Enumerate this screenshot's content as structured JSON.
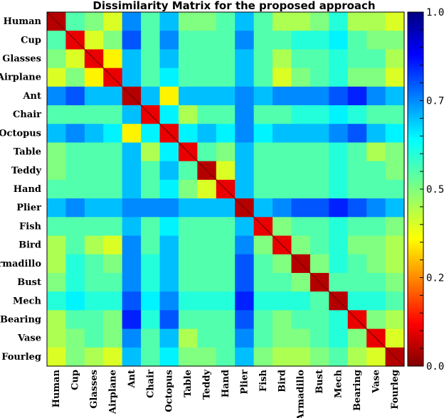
{
  "chart_data": {
    "type": "heatmap",
    "title": "Dissimilarity Matrix for the proposed approach",
    "categories": [
      "Human",
      "Cup",
      "Glasses",
      "Airplane",
      "Ant",
      "Chair",
      "Octopus",
      "Table",
      "Teddy",
      "Hand",
      "Plier",
      "Fish",
      "Bird",
      "Armadillo",
      "Bust",
      "Mech",
      "Bearing",
      "Vase",
      "Fourleg"
    ],
    "colorbar": {
      "range": [
        0,
        1
      ],
      "ticks": [
        0,
        0.25,
        0.5,
        0.75,
        1
      ],
      "tick_labels": [
        "0.0",
        "0.25",
        "0.5",
        "0.75",
        "1.0"
      ],
      "colormap": "jet-reversed"
    },
    "values": [
      [
        0.05,
        0.55,
        0.5,
        0.4,
        0.75,
        0.55,
        0.7,
        0.5,
        0.5,
        0.55,
        0.7,
        0.55,
        0.45,
        0.45,
        0.5,
        0.6,
        0.45,
        0.45,
        0.4
      ],
      [
        0.55,
        0.1,
        0.4,
        0.5,
        0.8,
        0.55,
        0.75,
        0.55,
        0.55,
        0.55,
        0.75,
        0.55,
        0.55,
        0.6,
        0.6,
        0.65,
        0.55,
        0.5,
        0.5
      ],
      [
        0.5,
        0.4,
        0.1,
        0.35,
        0.7,
        0.55,
        0.7,
        0.55,
        0.55,
        0.55,
        0.7,
        0.55,
        0.45,
        0.55,
        0.55,
        0.6,
        0.55,
        0.55,
        0.45
      ],
      [
        0.4,
        0.5,
        0.35,
        0.1,
        0.7,
        0.55,
        0.65,
        0.55,
        0.55,
        0.55,
        0.7,
        0.55,
        0.4,
        0.5,
        0.55,
        0.6,
        0.5,
        0.5,
        0.4
      ],
      [
        0.75,
        0.8,
        0.7,
        0.7,
        0.05,
        0.7,
        0.35,
        0.7,
        0.7,
        0.7,
        0.75,
        0.7,
        0.75,
        0.75,
        0.75,
        0.8,
        0.85,
        0.75,
        0.7
      ],
      [
        0.55,
        0.55,
        0.55,
        0.55,
        0.7,
        0.1,
        0.65,
        0.45,
        0.55,
        0.55,
        0.75,
        0.55,
        0.55,
        0.6,
        0.6,
        0.65,
        0.6,
        0.55,
        0.55
      ],
      [
        0.7,
        0.75,
        0.7,
        0.65,
        0.35,
        0.65,
        0.1,
        0.65,
        0.7,
        0.65,
        0.75,
        0.65,
        0.7,
        0.7,
        0.7,
        0.75,
        0.8,
        0.7,
        0.65
      ],
      [
        0.5,
        0.55,
        0.55,
        0.55,
        0.7,
        0.45,
        0.65,
        0.1,
        0.55,
        0.5,
        0.7,
        0.55,
        0.55,
        0.55,
        0.55,
        0.6,
        0.55,
        0.45,
        0.5
      ],
      [
        0.5,
        0.55,
        0.55,
        0.55,
        0.7,
        0.55,
        0.7,
        0.55,
        0.05,
        0.4,
        0.7,
        0.55,
        0.55,
        0.55,
        0.55,
        0.6,
        0.55,
        0.55,
        0.5
      ],
      [
        0.55,
        0.55,
        0.55,
        0.55,
        0.7,
        0.55,
        0.65,
        0.5,
        0.4,
        0.1,
        0.7,
        0.55,
        0.55,
        0.55,
        0.55,
        0.6,
        0.55,
        0.55,
        0.55
      ],
      [
        0.7,
        0.75,
        0.7,
        0.7,
        0.75,
        0.75,
        0.75,
        0.7,
        0.7,
        0.7,
        0.05,
        0.7,
        0.75,
        0.8,
        0.8,
        0.85,
        0.8,
        0.75,
        0.7
      ],
      [
        0.55,
        0.55,
        0.55,
        0.55,
        0.7,
        0.55,
        0.65,
        0.55,
        0.55,
        0.55,
        0.7,
        0.1,
        0.5,
        0.55,
        0.55,
        0.6,
        0.55,
        0.55,
        0.5
      ],
      [
        0.45,
        0.55,
        0.45,
        0.4,
        0.75,
        0.55,
        0.7,
        0.55,
        0.55,
        0.55,
        0.75,
        0.5,
        0.1,
        0.5,
        0.55,
        0.6,
        0.5,
        0.5,
        0.45
      ],
      [
        0.45,
        0.6,
        0.55,
        0.5,
        0.75,
        0.6,
        0.7,
        0.55,
        0.55,
        0.55,
        0.8,
        0.55,
        0.5,
        0.05,
        0.5,
        0.6,
        0.55,
        0.5,
        0.45
      ],
      [
        0.5,
        0.6,
        0.55,
        0.55,
        0.75,
        0.6,
        0.7,
        0.55,
        0.55,
        0.55,
        0.8,
        0.55,
        0.55,
        0.5,
        0.05,
        0.55,
        0.55,
        0.55,
        0.5
      ],
      [
        0.6,
        0.65,
        0.6,
        0.6,
        0.8,
        0.65,
        0.75,
        0.6,
        0.6,
        0.6,
        0.85,
        0.6,
        0.6,
        0.6,
        0.55,
        0.05,
        0.6,
        0.6,
        0.55
      ],
      [
        0.45,
        0.55,
        0.55,
        0.5,
        0.85,
        0.6,
        0.8,
        0.55,
        0.55,
        0.55,
        0.8,
        0.55,
        0.5,
        0.55,
        0.55,
        0.6,
        0.1,
        0.5,
        0.45
      ],
      [
        0.45,
        0.5,
        0.55,
        0.5,
        0.75,
        0.55,
        0.7,
        0.45,
        0.55,
        0.55,
        0.75,
        0.55,
        0.5,
        0.5,
        0.55,
        0.6,
        0.5,
        0.1,
        0.4
      ],
      [
        0.4,
        0.5,
        0.45,
        0.4,
        0.7,
        0.55,
        0.65,
        0.5,
        0.5,
        0.55,
        0.7,
        0.5,
        0.45,
        0.45,
        0.5,
        0.55,
        0.45,
        0.4,
        0.05
      ]
    ]
  }
}
